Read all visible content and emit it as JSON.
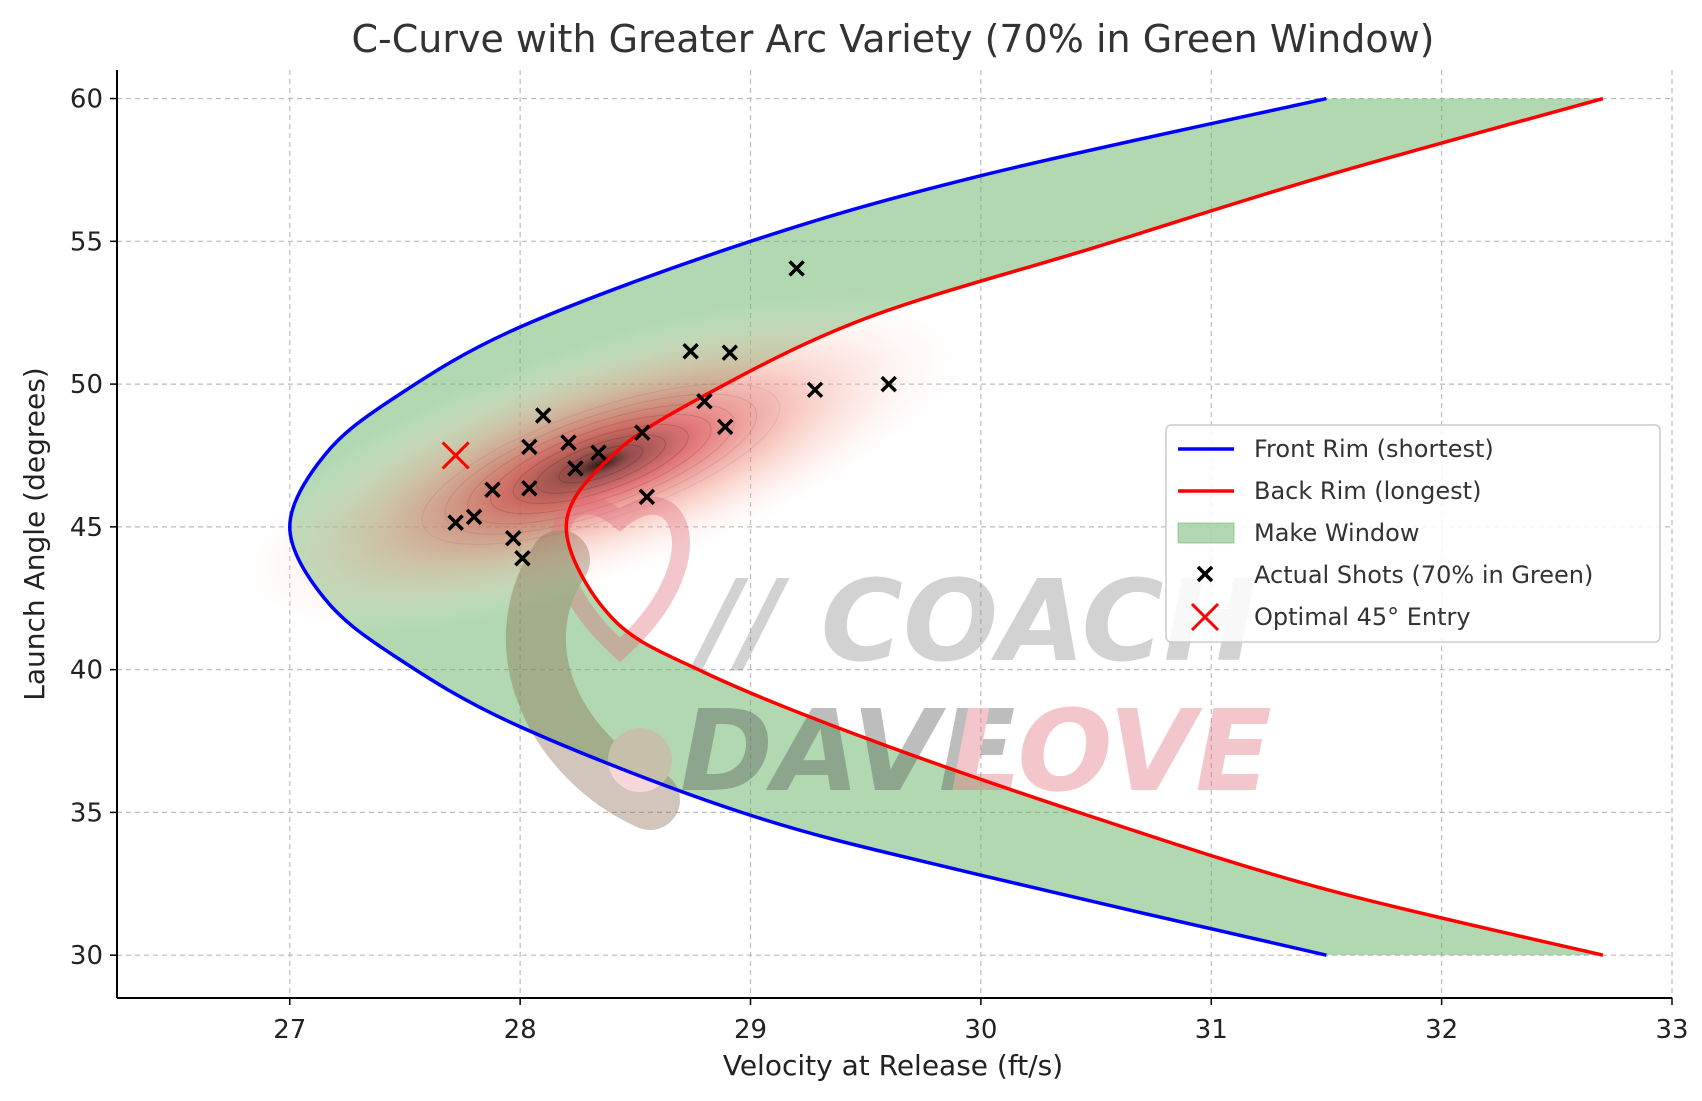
{
  "chart_data": {
    "type": "scatter",
    "title": "C-Curve with Greater Arc Variety (70% in Green Window)",
    "xlabel": "Velocity at Release (ft/s)",
    "ylabel": "Launch Angle (degrees)",
    "xlim": [
      26.25,
      33.0
    ],
    "ylim": [
      28.5,
      61.0
    ],
    "xticks": [
      27,
      28,
      29,
      30,
      31,
      32,
      33
    ],
    "yticks": [
      30,
      35,
      40,
      45,
      50,
      55,
      60
    ],
    "grid": true,
    "legend_position": "center-right",
    "series": [
      {
        "name": "Front Rim (shortest)",
        "kind": "line",
        "color": "#0000ff",
        "points": [
          [
            31.5,
            30
          ],
          [
            30.0,
            32.8
          ],
          [
            29.0,
            34.9
          ],
          [
            28.0,
            38.0
          ],
          [
            27.45,
            40.5
          ],
          [
            27.15,
            42.5
          ],
          [
            27.0,
            45.0
          ],
          [
            27.15,
            47.5
          ],
          [
            27.45,
            49.5
          ],
          [
            28.0,
            52.0
          ],
          [
            29.0,
            55.0
          ],
          [
            30.0,
            57.3
          ],
          [
            31.5,
            60
          ]
        ]
      },
      {
        "name": "Back Rim (longest)",
        "kind": "line",
        "color": "#ff0000",
        "points": [
          [
            32.7,
            30
          ],
          [
            31.5,
            32.3
          ],
          [
            30.5,
            34.8
          ],
          [
            29.5,
            37.6
          ],
          [
            28.8,
            39.9
          ],
          [
            28.4,
            41.8
          ],
          [
            28.2,
            45.0
          ],
          [
            28.4,
            47.5
          ],
          [
            28.8,
            49.6
          ],
          [
            29.5,
            52.3
          ],
          [
            30.5,
            54.8
          ],
          [
            31.5,
            57.3
          ],
          [
            32.7,
            60
          ]
        ]
      },
      {
        "name": "Make Window",
        "kind": "fill",
        "color": "#6ab56a"
      },
      {
        "name": "Actual Shots (70% in Green)",
        "kind": "scatter",
        "color": "#000000",
        "points": [
          [
            27.72,
            45.15
          ],
          [
            27.8,
            45.35
          ],
          [
            27.88,
            46.3
          ],
          [
            27.97,
            44.6
          ],
          [
            28.01,
            43.9
          ],
          [
            28.04,
            46.35
          ],
          [
            28.04,
            47.8
          ],
          [
            28.1,
            48.9
          ],
          [
            28.21,
            47.95
          ],
          [
            28.24,
            47.05
          ],
          [
            28.34,
            47.6
          ],
          [
            28.53,
            48.3
          ],
          [
            28.55,
            46.05
          ],
          [
            28.74,
            51.15
          ],
          [
            28.8,
            49.4
          ],
          [
            28.89,
            48.5
          ],
          [
            28.91,
            51.1
          ],
          [
            29.2,
            54.05
          ],
          [
            29.28,
            49.8
          ],
          [
            29.6,
            50.0
          ]
        ]
      },
      {
        "name": "Optimal 45° Entry",
        "kind": "scatter",
        "color": "#ff0000",
        "points": [
          [
            27.72,
            47.5
          ]
        ]
      }
    ],
    "density": {
      "center": [
        28.35,
        47.2
      ],
      "color": "#d84a4a"
    }
  },
  "watermark": {
    "line1": "// COACH",
    "line2_a": "DAVE",
    "line2_b": "LOVE"
  }
}
